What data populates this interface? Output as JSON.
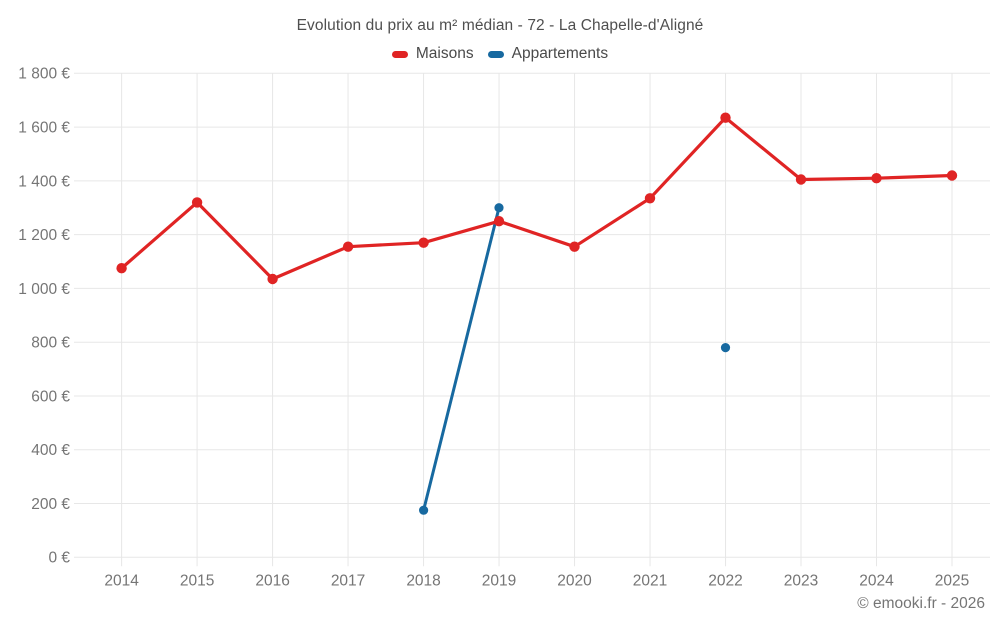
{
  "footer": {
    "copyright": "© emooki.fr - 2026"
  },
  "colors": {
    "maisons": "#e02424",
    "appartements": "#1769a0",
    "gridline": "#e7e7e7",
    "axis_label": "#757575",
    "title_text": "#4f4f4f",
    "legend_text": "#4a4a4a"
  },
  "chart_data": {
    "type": "line",
    "title": "Evolution du prix au m² médian - 72 - La Chapelle-d'Aligné",
    "xlabel": "",
    "ylabel": "",
    "unit": "€",
    "x": [
      2014,
      2015,
      2016,
      2017,
      2018,
      2019,
      2020,
      2021,
      2022,
      2023,
      2024,
      2025
    ],
    "series": [
      {
        "name": "Maisons",
        "color": "#e02424",
        "values": [
          1075,
          1320,
          1035,
          1155,
          1170,
          1250,
          1155,
          1335,
          1635,
          1405,
          1410,
          1420
        ]
      },
      {
        "name": "Appartements",
        "color": "#1769a0",
        "values": [
          null,
          null,
          null,
          null,
          175,
          1300,
          null,
          null,
          780,
          null,
          null,
          null
        ]
      }
    ],
    "ylim": [
      0,
      1800
    ],
    "ytick_values": [
      0,
      200,
      400,
      600,
      800,
      1000,
      1200,
      1400,
      1600,
      1800
    ],
    "ytick_labels": [
      "0 €",
      "200 €",
      "400 €",
      "600 €",
      "800 €",
      "1 000 €",
      "1 200 €",
      "1 400 €",
      "1 600 €",
      "1 800 €"
    ],
    "grid": true,
    "legend_position": "top"
  }
}
